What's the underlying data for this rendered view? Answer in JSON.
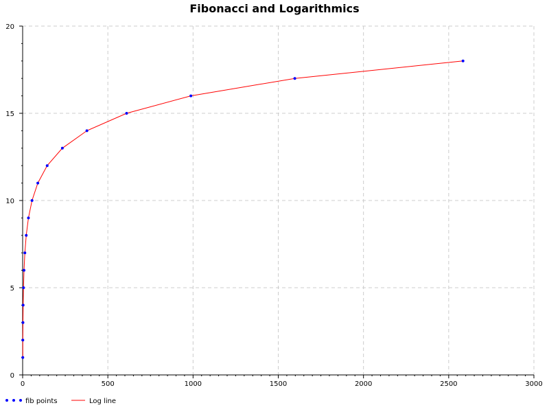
{
  "chart_data": {
    "type": "scatter",
    "title": "Fibonacci and Logarithmics",
    "xlabel": "",
    "ylabel": "",
    "xlim": [
      0,
      3000
    ],
    "ylim": [
      0,
      20
    ],
    "x_ticks": [
      0,
      500,
      1000,
      1500,
      2000,
      2500,
      3000
    ],
    "y_ticks": [
      0,
      5,
      10,
      15,
      20
    ],
    "grid": true,
    "legend_position": "bottom-left",
    "series": [
      {
        "name": "fib points",
        "kind": "scatter",
        "color": "#0000ff",
        "x": [
          1,
          1,
          2,
          3,
          5,
          8,
          13,
          21,
          34,
          55,
          89,
          144,
          233,
          377,
          610,
          987,
          1597,
          2584
        ],
        "y": [
          1,
          2,
          3,
          4,
          5,
          6,
          7,
          8,
          9,
          10,
          11,
          12,
          13,
          14,
          15,
          16,
          17,
          18
        ]
      },
      {
        "name": "Log line",
        "kind": "line",
        "color": "#ff0000",
        "x": [
          1,
          1,
          2,
          3,
          5,
          8,
          13,
          21,
          34,
          55,
          89,
          144,
          233,
          377,
          610,
          987,
          1597,
          2584
        ],
        "y": [
          1,
          2,
          3,
          4,
          5,
          6,
          7,
          8,
          9,
          10,
          11,
          12,
          13,
          14,
          15,
          16,
          17,
          18
        ]
      }
    ]
  }
}
